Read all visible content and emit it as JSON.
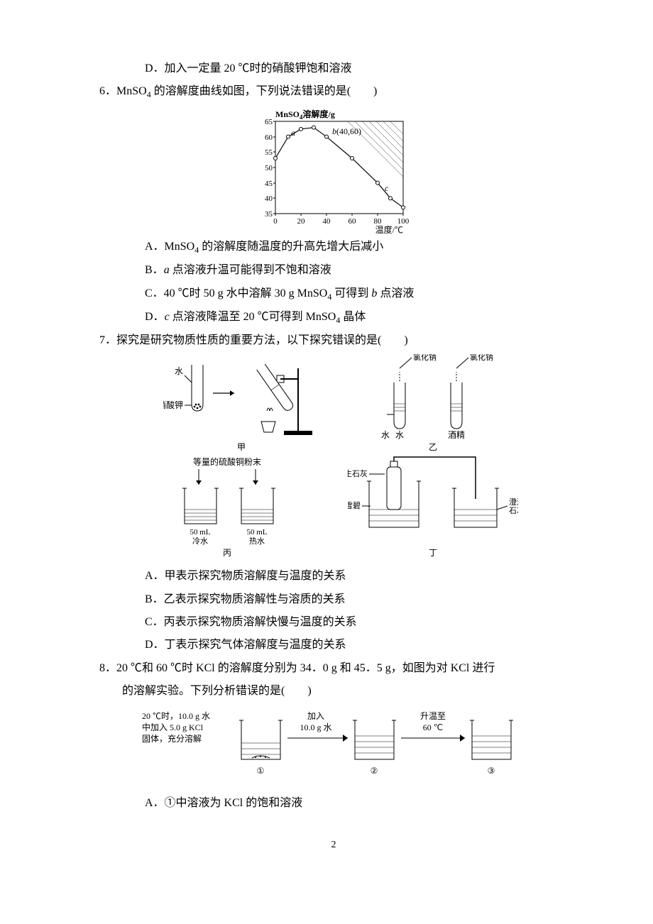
{
  "optD_prev": "D．加入一定量 20 ℃时的硝酸钾饱和溶液",
  "q6": {
    "num": "6．",
    "stem_a": "MnSO",
    "stem_b": " 的溶解度曲线如图，下列说法错误的是(　　)",
    "chart": {
      "ylabel_a": "MnSO",
      "ylabel_b": "溶解度/g",
      "xlabel": "温度/℃",
      "yticks": [
        "35",
        "40",
        "45",
        "50",
        "55",
        "60",
        "65"
      ],
      "ymin": 35,
      "ymax": 65,
      "xticks": [
        "0",
        "20",
        "40",
        "60",
        "80",
        "100"
      ],
      "xmin": 0,
      "xmax": 100,
      "points": [
        {
          "x": 0,
          "y": 53
        },
        {
          "x": 10,
          "y": 60
        },
        {
          "x": 20,
          "y": 62.5
        },
        {
          "x": 30,
          "y": 63
        },
        {
          "x": 40,
          "y": 60
        },
        {
          "x": 60,
          "y": 53
        },
        {
          "x": 80,
          "y": 45
        },
        {
          "x": 90,
          "y": 40
        },
        {
          "x": 100,
          "y": 37
        }
      ],
      "label_a": "a",
      "label_b": "b(40,60)",
      "label_c": "c",
      "bg": "#ffffff",
      "axis_color": "#000000",
      "line_color": "#000000"
    },
    "A_a": "A．MnSO",
    "A_b": " 的溶解度随温度的升高先增大后减小",
    "B": "B．a 点溶液升温可能得到不饱和溶液",
    "C_a": "C．40 ℃时 50 g 水中溶解 30 g MnSO",
    "C_b": " 可得到 b 点溶液",
    "D_a": "D．c 点溶液降温至 20 ℃可得到 MnSO",
    "D_b": " 晶体"
  },
  "q7": {
    "num": "7．",
    "stem": "探究是研究物质性质的重要方法，以下探究错误的是(　　)",
    "fig": {
      "jia": {
        "water": "水",
        "kno3": "硝酸钾",
        "cap": "甲"
      },
      "yi": {
        "nacl": "氯化钠",
        "water": "水",
        "alcohol": "酒精",
        "cap": "乙"
      },
      "bing": {
        "top": "等量的硫酸铜粉末",
        "v": "50 mL",
        "cold": "冷水",
        "hot": "热水",
        "cap": "丙"
      },
      "ding": {
        "cao": "生石灰",
        "sprite": "雪碧",
        "lime": "澄清\n石灰水",
        "cap": "丁"
      }
    },
    "A": "A．甲表示探究物质溶解度与温度的关系",
    "B": "B．乙表示探究物质溶解性与溶质的关系",
    "C": "C．丙表示探究物质溶解快慢与温度的关系",
    "D": "D．丁表示探究气体溶解度与温度的关系"
  },
  "q8": {
    "num": "8．",
    "stem1": "20 ℃和 60 ℃时 KCl 的溶解度分别为 34．0 g 和 45．5 g，如图为对 KCl 进行",
    "stem2": "的溶解实验。下列分析错误的是(　　)",
    "fig": {
      "t1a": "20 ℃时，10.0 g 水",
      "t1b": "中加入 5.0 g KCl",
      "t1c": "固体，充分溶解",
      "arr1a": "加入",
      "arr1b": "10.0 g 水",
      "arr2a": "升温至",
      "arr2b": "60 ℃",
      "n1": "①",
      "n2": "②",
      "n3": "③"
    },
    "A": "A．①中溶液为 KCl 的饱和溶液"
  },
  "pagenum": "2"
}
